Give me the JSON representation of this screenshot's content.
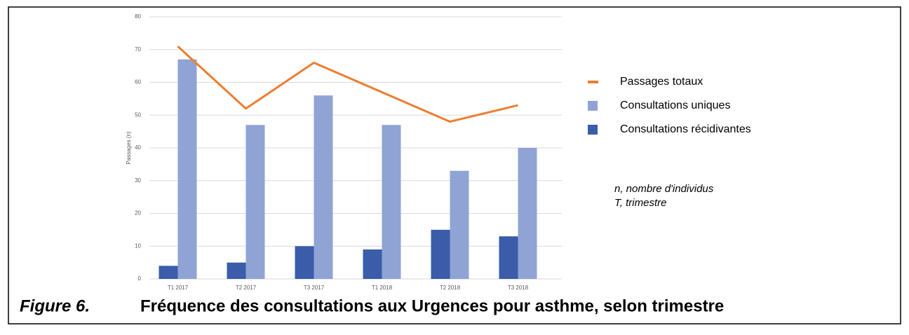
{
  "chart_data": {
    "type": "bar",
    "figure_label": "Figure 6.",
    "title": "Fréquence des consultations aux Urgences pour asthme, selon trimestre",
    "y_label": "Passages (n)",
    "categories": [
      "T1 2017",
      "T2 2017",
      "T3 2017",
      "T1 2018",
      "T2 2018",
      "T3 2018"
    ],
    "series": [
      {
        "name": "Passages totaux",
        "type": "line",
        "color": "#ed7d31",
        "values": [
          71,
          52,
          66,
          57,
          48,
          53
        ]
      },
      {
        "name": "Consultations uniques",
        "type": "bar",
        "color": "#8fa3d5",
        "values": [
          67,
          47,
          56,
          47,
          33,
          40
        ]
      },
      {
        "name": "Consultations récidivantes",
        "type": "bar",
        "color": "#3a5ca9",
        "values": [
          4,
          5,
          10,
          9,
          15,
          13
        ]
      }
    ],
    "annotations": [
      "n, nombre d'individus",
      "T, trimestre"
    ],
    "ylim": [
      0,
      80
    ],
    "yticks": [
      0,
      10,
      20,
      30,
      40,
      50,
      60,
      70,
      80
    ],
    "grid": true,
    "legend": "right"
  }
}
